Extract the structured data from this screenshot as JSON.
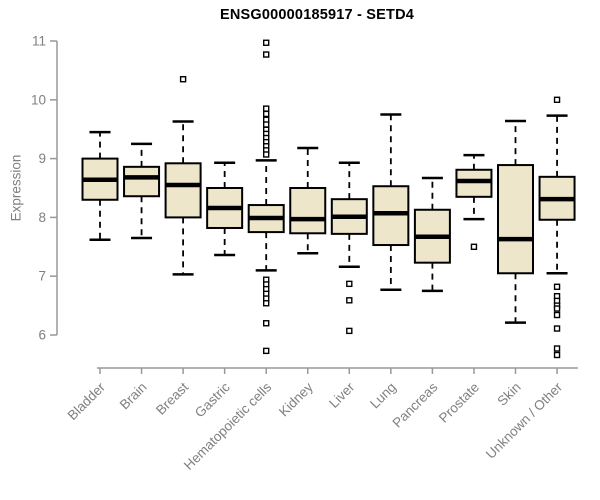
{
  "chart_data": {
    "type": "boxplot",
    "title": "ENSG00000185917 - SETD4",
    "ylabel": "Expression",
    "xlabel": "",
    "ylim": [
      6,
      11
    ],
    "y_ticks": [
      6,
      7,
      8,
      9,
      10,
      11
    ],
    "grid": false,
    "legend": "none",
    "categories": [
      "Bladder",
      "Brain",
      "Breast",
      "Gastric",
      "Hematopoietic cells",
      "Kidney",
      "Liver",
      "Lung",
      "Pancreas",
      "Prostate",
      "Skin",
      "Unknown / Other"
    ],
    "series": [
      {
        "name": "Bladder",
        "low": 7.62,
        "q1": 8.3,
        "median": 8.64,
        "q3": 9.0,
        "high": 9.45,
        "outliers": []
      },
      {
        "name": "Brain",
        "low": 7.65,
        "q1": 8.36,
        "median": 8.68,
        "q3": 8.86,
        "high": 9.25,
        "outliers": []
      },
      {
        "name": "Breast",
        "low": 7.03,
        "q1": 8.0,
        "median": 8.55,
        "q3": 8.92,
        "high": 9.63,
        "outliers": [
          10.35
        ]
      },
      {
        "name": "Gastric",
        "low": 7.36,
        "q1": 7.82,
        "median": 8.16,
        "q3": 8.5,
        "high": 8.93,
        "outliers": []
      },
      {
        "name": "Hematopoietic cells",
        "low": 7.1,
        "q1": 7.75,
        "median": 7.99,
        "q3": 8.21,
        "high": 8.97,
        "outliers": [
          10.97,
          10.77,
          9.85,
          9.76,
          9.66,
          9.58,
          9.49,
          9.42,
          9.35,
          9.28,
          9.21,
          9.14,
          9.07,
          6.94,
          6.86,
          6.78,
          6.7,
          6.62,
          6.54,
          6.2,
          5.73
        ]
      },
      {
        "name": "Kidney",
        "low": 7.39,
        "q1": 7.73,
        "median": 7.97,
        "q3": 8.5,
        "high": 9.18,
        "outliers": []
      },
      {
        "name": "Liver",
        "low": 7.16,
        "q1": 7.72,
        "median": 8.01,
        "q3": 8.31,
        "high": 8.93,
        "outliers": [
          6.87,
          6.59,
          6.07
        ]
      },
      {
        "name": "Lung",
        "low": 6.77,
        "q1": 7.53,
        "median": 8.07,
        "q3": 8.53,
        "high": 9.75,
        "outliers": []
      },
      {
        "name": "Pancreas",
        "low": 6.75,
        "q1": 7.23,
        "median": 7.67,
        "q3": 8.13,
        "high": 8.67,
        "outliers": []
      },
      {
        "name": "Prostate",
        "low": 7.97,
        "q1": 8.35,
        "median": 8.62,
        "q3": 8.81,
        "high": 9.06,
        "outliers": [
          7.5
        ]
      },
      {
        "name": "Skin",
        "low": 6.21,
        "q1": 7.05,
        "median": 7.63,
        "q3": 8.89,
        "high": 9.64,
        "outliers": []
      },
      {
        "name": "Unknown / Other",
        "low": 7.05,
        "q1": 7.96,
        "median": 8.31,
        "q3": 8.69,
        "high": 9.73,
        "outliers": [
          10.0,
          6.82,
          6.66,
          6.58,
          6.5,
          6.45,
          6.34,
          6.11,
          5.77,
          5.66
        ]
      }
    ],
    "colors": {
      "box_fill": "#EDE6CA",
      "box_border": "#000000",
      "median": "#000000",
      "whisker": "#000000",
      "outlier_fill": "#FFFFFF",
      "axis": "#989898",
      "tick_label": "#808080",
      "title": "#000000",
      "background": "#FFFFFF"
    }
  }
}
